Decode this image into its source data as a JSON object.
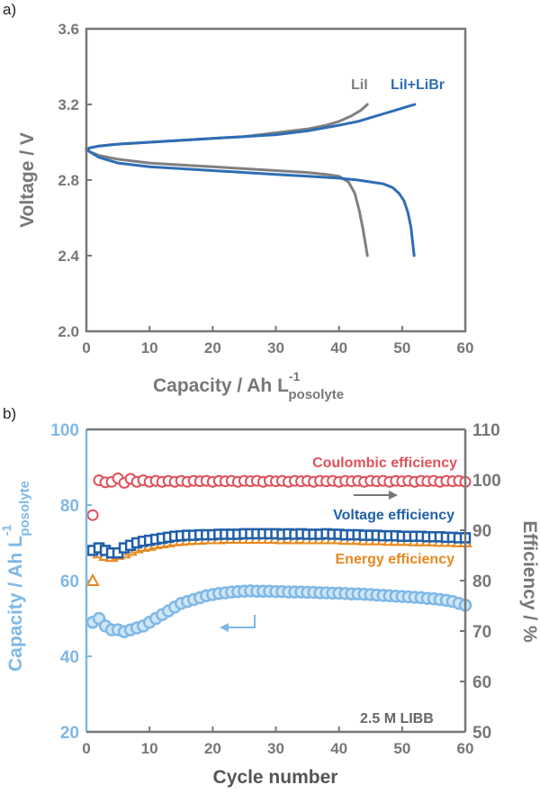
{
  "panel_labels": [
    "a)",
    "b)"
  ],
  "colors": {
    "axis_gray": "#777777",
    "lil": "#808080",
    "lil_libr": "#2f6db5",
    "capacity": "#7fb8e6",
    "coulombic": "#e0505a",
    "voltage": "#1f5fa8",
    "energy": "#e8881e"
  },
  "chart_data": [
    {
      "type": "line",
      "panel": "a)",
      "xlabel_main": "Capacity / Ah L",
      "xlabel_sup": "-1",
      "xlabel_sub": "posolyte",
      "ylabel": "Voltage / V",
      "xlim": [
        0,
        60
      ],
      "ylim": [
        2.0,
        3.6
      ],
      "xticks": [
        0,
        10,
        20,
        30,
        40,
        50,
        60
      ],
      "yticks": [
        2.0,
        2.4,
        2.8,
        3.2,
        3.6
      ],
      "ytick_labels": [
        "2.0",
        "2.4",
        "2.8",
        "3.2",
        "3.6"
      ],
      "legend": [
        {
          "text": "LiI",
          "color": "#808080"
        },
        {
          "text": "LiI+LiBr",
          "color": "#2f6db5"
        }
      ],
      "series": [
        {
          "name": "LiI",
          "color": "#808080",
          "charge": {
            "x": [
              0,
              0.5,
              2,
              5,
              10,
              15,
              20,
              25,
              30,
              35,
              38,
              40,
              42,
              43.5,
              44.5
            ],
            "y": [
              2.95,
              2.97,
              2.98,
              2.99,
              3.0,
              3.01,
              3.02,
              3.03,
              3.05,
              3.07,
              3.09,
              3.11,
              3.14,
              3.17,
              3.2
            ]
          },
          "discharge": {
            "x": [
              0,
              0.5,
              2,
              5,
              10,
              15,
              20,
              25,
              30,
              35,
              38,
              40,
              41.5,
              42.5,
              43.2,
              43.8,
              44.2,
              44.5
            ],
            "y": [
              2.97,
              2.95,
              2.93,
              2.91,
              2.89,
              2.88,
              2.87,
              2.86,
              2.85,
              2.84,
              2.83,
              2.82,
              2.79,
              2.73,
              2.64,
              2.54,
              2.46,
              2.4
            ]
          }
        },
        {
          "name": "LiI+LiBr",
          "color": "#2f6db5",
          "charge": {
            "x": [
              0,
              0.5,
              2,
              5,
              10,
              15,
              20,
              25,
              30,
              35,
              40,
              43,
              45,
              47,
              49,
              51,
              52
            ],
            "y": [
              2.96,
              2.97,
              2.98,
              2.99,
              3.0,
              3.01,
              3.02,
              3.03,
              3.04,
              3.06,
              3.09,
              3.11,
              3.13,
              3.15,
              3.17,
              3.19,
              3.2
            ]
          },
          "discharge": {
            "x": [
              0,
              0.5,
              2,
              5,
              10,
              15,
              20,
              25,
              30,
              35,
              40,
              43,
              45,
              47,
              48.5,
              49.5,
              50.3,
              50.9,
              51.4,
              51.7,
              51.9
            ],
            "y": [
              2.97,
              2.95,
              2.92,
              2.89,
              2.87,
              2.86,
              2.85,
              2.84,
              2.83,
              2.82,
              2.81,
              2.8,
              2.79,
              2.78,
              2.76,
              2.73,
              2.69,
              2.63,
              2.55,
              2.46,
              2.4
            ]
          }
        }
      ]
    },
    {
      "type": "scatter",
      "panel": "b)",
      "xlabel": "Cycle number",
      "ylabel_left_main": "Capacity / Ah L",
      "ylabel_left_sup": "-1",
      "ylabel_left_sub": "posolyte",
      "ylabel_right": "Efficiency / %",
      "xlim": [
        0,
        60
      ],
      "xticks": [
        0,
        10,
        20,
        30,
        40,
        50,
        60
      ],
      "ylim_left": [
        20,
        100
      ],
      "yticks_left": [
        20,
        40,
        60,
        80,
        100
      ],
      "ylim_right": [
        50,
        110
      ],
      "yticks_right": [
        50,
        60,
        70,
        80,
        90,
        100,
        110
      ],
      "annotation": "2.5 M LIBB",
      "legend": [
        {
          "text": "Coulombic efficiency",
          "color": "#e0505a"
        },
        {
          "text": "Voltage efficiency",
          "color": "#1f5fa8"
        },
        {
          "text": "Energy efficiency",
          "color": "#e8881e"
        }
      ],
      "series": [
        {
          "name": "Coulombic efficiency",
          "axis": "right",
          "marker": "circle",
          "color": "#e0505a",
          "x": [
            1,
            2,
            3,
            4,
            5,
            6,
            7,
            8,
            9,
            10,
            11,
            12,
            13,
            14,
            15,
            16,
            17,
            18,
            19,
            20,
            21,
            22,
            23,
            24,
            25,
            26,
            27,
            28,
            29,
            30,
            31,
            32,
            33,
            34,
            35,
            36,
            37,
            38,
            39,
            40,
            41,
            42,
            43,
            44,
            45,
            46,
            47,
            48,
            49,
            50,
            51,
            52,
            53,
            54,
            55,
            56,
            57,
            58,
            59,
            60
          ],
          "values": [
            93.0,
            99.9,
            99.5,
            99.6,
            100.3,
            99.4,
            100.2,
            99.6,
            99.9,
            99.6,
            99.8,
            99.6,
            99.8,
            99.6,
            99.8,
            99.6,
            99.8,
            99.7,
            99.8,
            99.6,
            99.8,
            99.7,
            99.8,
            99.6,
            99.8,
            99.7,
            99.8,
            99.6,
            99.8,
            99.7,
            99.8,
            99.6,
            99.8,
            99.7,
            99.8,
            99.6,
            99.8,
            99.7,
            99.8,
            99.6,
            99.8,
            99.7,
            99.8,
            99.6,
            99.8,
            99.7,
            99.8,
            99.6,
            99.8,
            99.7,
            99.8,
            99.6,
            99.8,
            99.7,
            99.8,
            99.6,
            99.8,
            99.7,
            99.8,
            99.6
          ]
        },
        {
          "name": "Voltage efficiency",
          "axis": "right",
          "marker": "square",
          "color": "#1f5fa8",
          "x": [
            1,
            2,
            3,
            4,
            5,
            6,
            7,
            8,
            9,
            10,
            11,
            12,
            13,
            14,
            15,
            16,
            17,
            18,
            19,
            20,
            21,
            22,
            23,
            24,
            25,
            26,
            27,
            28,
            29,
            30,
            31,
            32,
            33,
            34,
            35,
            36,
            37,
            38,
            39,
            40,
            41,
            42,
            43,
            44,
            45,
            46,
            47,
            48,
            49,
            50,
            51,
            52,
            53,
            54,
            55,
            56,
            57,
            58,
            59,
            60
          ],
          "values": [
            86.0,
            86.5,
            86.0,
            85.5,
            85.5,
            86.5,
            87.0,
            87.5,
            87.8,
            88.0,
            88.2,
            88.4,
            88.6,
            88.8,
            88.9,
            89.0,
            89.0,
            89.1,
            89.1,
            89.1,
            89.2,
            89.2,
            89.2,
            89.2,
            89.3,
            89.3,
            89.3,
            89.3,
            89.3,
            89.3,
            89.2,
            89.3,
            89.2,
            89.3,
            89.2,
            89.2,
            89.2,
            89.3,
            89.2,
            89.2,
            89.1,
            89.1,
            89.1,
            89.0,
            89.0,
            89.0,
            88.9,
            88.9,
            88.9,
            88.8,
            88.8,
            88.8,
            88.8,
            88.7,
            88.7,
            88.7,
            88.6,
            88.6,
            88.5,
            88.5
          ]
        },
        {
          "name": "Energy efficiency",
          "axis": "right",
          "marker": "triangle",
          "color": "#e8881e",
          "x": [
            1,
            2,
            3,
            4,
            5,
            6,
            7,
            8,
            9,
            10,
            11,
            12,
            13,
            14,
            15,
            16,
            17,
            18,
            19,
            20,
            21,
            22,
            23,
            24,
            25,
            26,
            27,
            28,
            29,
            30,
            31,
            32,
            33,
            34,
            35,
            36,
            37,
            38,
            39,
            40,
            41,
            42,
            43,
            44,
            45,
            46,
            47,
            48,
            49,
            50,
            51,
            52,
            53,
            54,
            55,
            56,
            57,
            58,
            59,
            60
          ],
          "values": [
            80.0,
            85.5,
            85.0,
            84.8,
            85.2,
            85.5,
            86.0,
            86.5,
            86.8,
            87.0,
            87.3,
            87.5,
            87.7,
            87.9,
            88.0,
            88.1,
            88.2,
            88.2,
            88.3,
            88.3,
            88.3,
            88.4,
            88.4,
            88.4,
            88.4,
            88.4,
            88.4,
            88.4,
            88.4,
            88.4,
            88.3,
            88.4,
            88.3,
            88.4,
            88.3,
            88.3,
            88.3,
            88.3,
            88.3,
            88.3,
            88.2,
            88.2,
            88.2,
            88.1,
            88.1,
            88.1,
            88.1,
            88.0,
            88.0,
            88.0,
            88.0,
            87.9,
            87.9,
            87.9,
            87.9,
            87.8,
            87.8,
            87.8,
            87.7,
            87.7
          ]
        },
        {
          "name": "Capacity",
          "axis": "left",
          "marker": "circle",
          "color": "#7fb8e6",
          "x": [
            1,
            2,
            3,
            4,
            5,
            6,
            7,
            8,
            9,
            10,
            11,
            12,
            13,
            14,
            15,
            16,
            17,
            18,
            19,
            20,
            21,
            22,
            23,
            24,
            25,
            26,
            27,
            28,
            29,
            30,
            31,
            32,
            33,
            34,
            35,
            36,
            37,
            38,
            39,
            40,
            41,
            42,
            43,
            44,
            45,
            46,
            47,
            48,
            49,
            50,
            51,
            52,
            53,
            54,
            55,
            56,
            57,
            58,
            59,
            60
          ],
          "values": [
            49.0,
            50.0,
            48.0,
            47.0,
            47.0,
            46.5,
            47.0,
            47.5,
            48.0,
            49.0,
            50.0,
            51.0,
            52.0,
            53.0,
            54.0,
            54.5,
            55.0,
            55.5,
            56.0,
            56.3,
            56.6,
            56.8,
            57.0,
            57.1,
            57.2,
            57.3,
            57.2,
            57.2,
            57.2,
            57.1,
            57.1,
            57.0,
            57.0,
            57.0,
            56.9,
            56.9,
            56.8,
            56.8,
            56.7,
            56.7,
            56.6,
            56.5,
            56.5,
            56.4,
            56.3,
            56.2,
            56.1,
            56.0,
            55.9,
            55.8,
            55.7,
            55.6,
            55.5,
            55.3,
            55.2,
            55.0,
            54.8,
            54.5,
            54.0,
            53.5
          ]
        }
      ]
    }
  ]
}
